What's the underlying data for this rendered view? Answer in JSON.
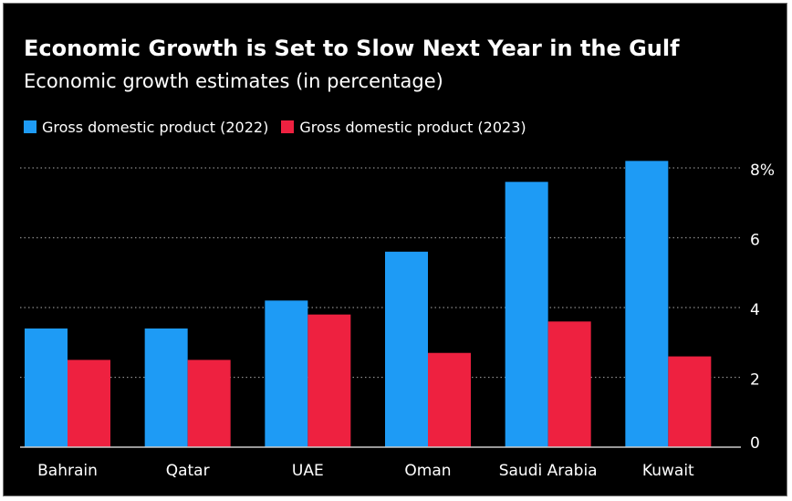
{
  "chart_data": {
    "type": "bar",
    "title": "Economic Growth is Set to Slow Next Year in the Gulf",
    "subtitle": "Economic growth estimates (in percentage)",
    "categories": [
      "Bahrain",
      "Qatar",
      "UAE",
      "Oman",
      "Saudi Arabia",
      "Kuwait"
    ],
    "series": [
      {
        "name": "Gross domestic product (2022)",
        "color": "#1e9bf5",
        "values": [
          3.4,
          3.4,
          4.2,
          5.6,
          7.6,
          8.2
        ]
      },
      {
        "name": "Gross domestic product (2023)",
        "color": "#ee2140",
        "values": [
          2.5,
          2.5,
          3.8,
          2.7,
          3.6,
          2.6
        ]
      }
    ],
    "ylim": [
      0,
      8
    ],
    "yticks": [
      0,
      2,
      4,
      6,
      8
    ],
    "ytick_labels": [
      "0",
      "2",
      "4",
      "6",
      "8%"
    ],
    "grid": "dotted horizontal",
    "legend_position": "top-left",
    "xlabel": "",
    "ylabel": ""
  }
}
